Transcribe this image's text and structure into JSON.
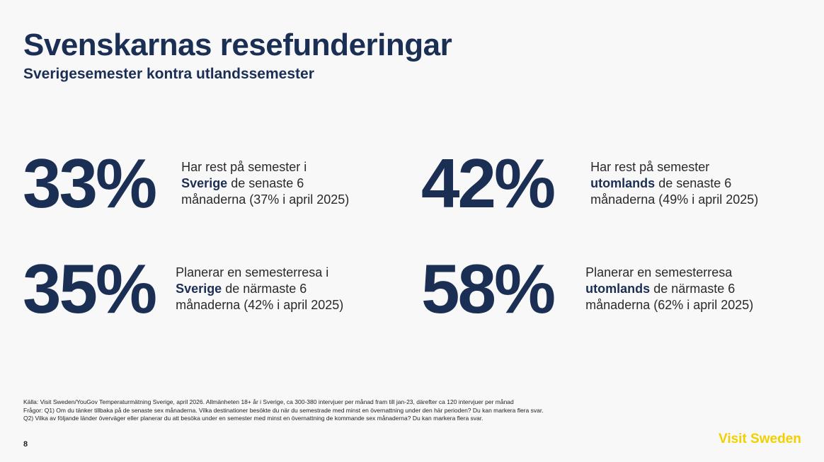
{
  "header": {
    "title": "Svenskarnas resefunderingar",
    "subtitle": "Sverigesemester kontra utlandssemester"
  },
  "stats": [
    {
      "value": "33%",
      "text_before": "Har rest på semester i",
      "highlight": "Sverige",
      "text_after": "de senaste 6 månaderna (37% i april 2025)"
    },
    {
      "value": "42%",
      "text_before": "Har rest på semester",
      "highlight": "utomlands",
      "text_after": "de senaste 6 månaderna (49% i april 2025)"
    },
    {
      "value": "35%",
      "text_before": "Planerar en semesterresa i",
      "highlight": "Sverige",
      "text_after": "de närmaste 6 månaderna (42% i april 2025)"
    },
    {
      "value": "58%",
      "text_before": "Planerar en semesterresa",
      "highlight": "utomlands",
      "text_after": "de närmaste 6 månaderna (62% i april 2025)"
    }
  ],
  "footnote": {
    "source": "Källa: Visit Sweden/YouGov Temperaturmätning Sverige, april 2026. Allmänheten 18+ år i Sverige, ca 300-380 intervjuer per månad fram till jan-23, därefter ca 120 intervjuer per månad",
    "q1": "Frågor: Q1) Om du tänker tillbaka på de senaste sex månaderna. Vilka destinationer besökte du när du semestrade med minst en övernattning under den här perioden? Du kan markera flera svar.",
    "q2": "Q2) Vilka av följande länder överväger eller planerar du att besöka under en semester med minst en övernattning de kommande sex månaderna? Du kan markera flera svar."
  },
  "page_number": "8",
  "brand": {
    "name": "Visit Sweden",
    "color": "#f2d000"
  },
  "colors": {
    "primary": "#1b2f55",
    "background": "#f8f8f8"
  }
}
